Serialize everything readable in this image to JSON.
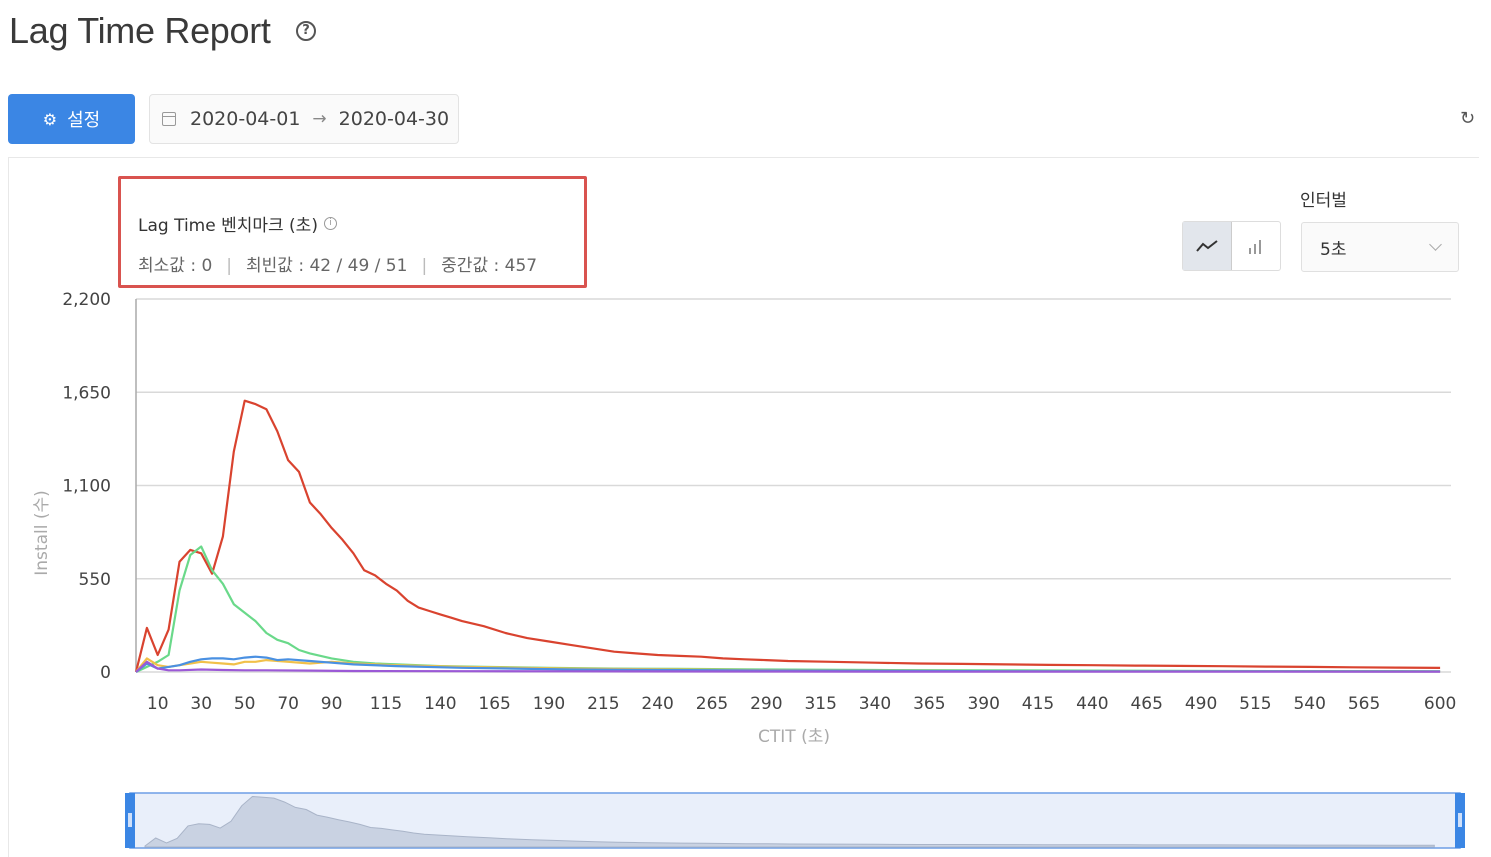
{
  "header": {
    "title": "Lag Time Report"
  },
  "toolbar": {
    "settings_label": "설정",
    "date_start": "2020-04-01",
    "date_end": "2020-04-30"
  },
  "benchmark": {
    "title": "Lag Time 벤치마크 (초)",
    "min_label": "최소값 : 0",
    "mode_label": "최빈값 : 42 / 49 / 51",
    "median_label": "중간값 : 457"
  },
  "interval": {
    "label": "인터벌",
    "selected": "5초"
  },
  "colors": {
    "accent": "#3b86e4",
    "highlight_border": "#d9534f",
    "series": [
      "#d9432f",
      "#6ad98a",
      "#f1c04a",
      "#4a90e2",
      "#9b59d6"
    ]
  },
  "chart_data": {
    "type": "line",
    "xlabel": "CTIT (초)",
    "ylabel": "Install (수)",
    "ylim": [
      0,
      2200
    ],
    "xlim": [
      0,
      605
    ],
    "y_ticks": [
      0,
      550,
      1100,
      1650,
      2200
    ],
    "y_tick_labels": [
      "0",
      "550",
      "1,100",
      "1,650",
      "2,200"
    ],
    "x_ticks": [
      10,
      30,
      50,
      70,
      90,
      115,
      140,
      165,
      190,
      215,
      240,
      265,
      290,
      315,
      340,
      365,
      390,
      415,
      440,
      465,
      490,
      515,
      540,
      565,
      600
    ],
    "grid": true,
    "series": [
      {
        "x": [
          0,
          5,
          10,
          15,
          20,
          25,
          30,
          35,
          40,
          45,
          50,
          55,
          60,
          65,
          70,
          75,
          80,
          85,
          90,
          95,
          100,
          105,
          110,
          115,
          120,
          125,
          130,
          135,
          140,
          145,
          150,
          160,
          170,
          180,
          190,
          200,
          210,
          220,
          230,
          240,
          250,
          260,
          270,
          280,
          290,
          300,
          320,
          340,
          360,
          380,
          400,
          420,
          440,
          460,
          480,
          500,
          520,
          540,
          560,
          580,
          600
        ],
        "y": [
          0,
          260,
          100,
          250,
          650,
          720,
          700,
          580,
          800,
          1300,
          1600,
          1580,
          1550,
          1420,
          1250,
          1180,
          1000,
          930,
          850,
          780,
          700,
          600,
          570,
          520,
          480,
          420,
          380,
          360,
          340,
          320,
          300,
          270,
          230,
          200,
          180,
          160,
          140,
          120,
          110,
          100,
          95,
          90,
          80,
          75,
          70,
          65,
          60,
          55,
          50,
          48,
          45,
          42,
          40,
          38,
          36,
          34,
          32,
          30,
          28,
          26,
          24
        ]
      },
      {
        "x": [
          0,
          5,
          10,
          15,
          20,
          25,
          30,
          35,
          40,
          45,
          50,
          55,
          60,
          65,
          70,
          75,
          80,
          90,
          100,
          110,
          120,
          140,
          160,
          190,
          220,
          250,
          290,
          340,
          390,
          440,
          500,
          600
        ],
        "y": [
          0,
          30,
          60,
          100,
          480,
          690,
          740,
          600,
          520,
          400,
          350,
          300,
          230,
          190,
          170,
          130,
          110,
          80,
          60,
          50,
          45,
          35,
          30,
          25,
          20,
          18,
          15,
          12,
          10,
          8,
          6,
          5
        ]
      },
      {
        "x": [
          0,
          5,
          10,
          15,
          20,
          25,
          30,
          35,
          40,
          45,
          50,
          55,
          60,
          70,
          80,
          90,
          100,
          120,
          150,
          200,
          300,
          400,
          600
        ],
        "y": [
          0,
          80,
          40,
          30,
          40,
          50,
          60,
          55,
          50,
          45,
          60,
          60,
          70,
          60,
          50,
          60,
          50,
          40,
          30,
          20,
          10,
          5,
          3
        ]
      },
      {
        "x": [
          0,
          5,
          10,
          15,
          20,
          25,
          30,
          35,
          40,
          45,
          50,
          55,
          60,
          65,
          70,
          80,
          90,
          100,
          120,
          150,
          200,
          300,
          400,
          600
        ],
        "y": [
          0,
          50,
          20,
          30,
          40,
          60,
          75,
          80,
          80,
          75,
          85,
          90,
          85,
          70,
          75,
          65,
          55,
          45,
          35,
          25,
          15,
          8,
          5,
          3
        ]
      },
      {
        "x": [
          0,
          5,
          10,
          15,
          20,
          30,
          40,
          50,
          60,
          80,
          100,
          150,
          200,
          300,
          400,
          600
        ],
        "y": [
          0,
          60,
          20,
          10,
          10,
          15,
          12,
          10,
          10,
          8,
          6,
          5,
          4,
          3,
          2,
          2
        ]
      }
    ]
  }
}
